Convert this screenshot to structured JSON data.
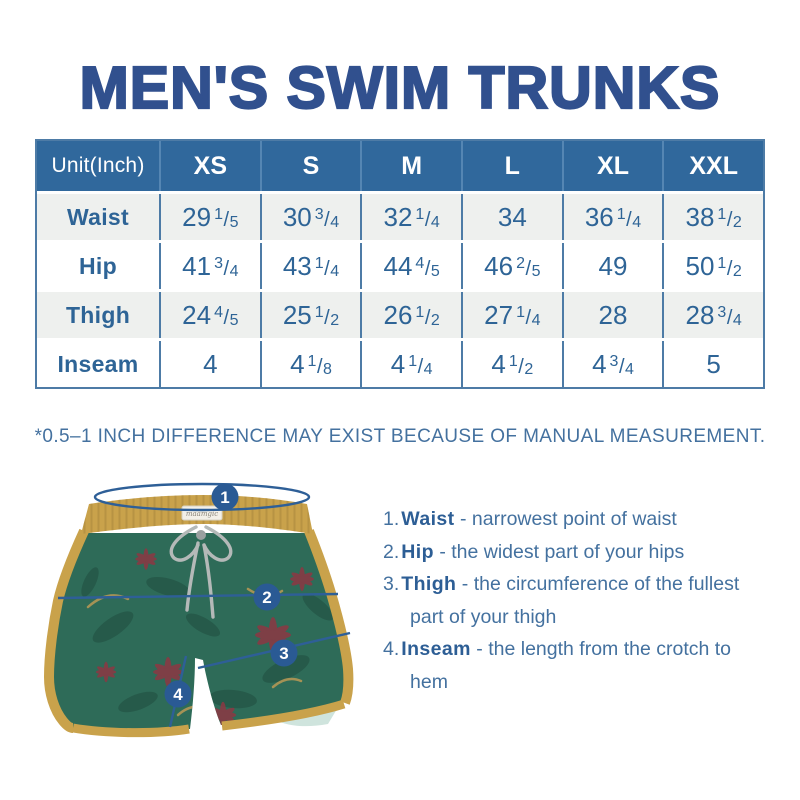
{
  "title": "MEN'S SWIM TRUNKS",
  "size_table": {
    "unit_label": "Unit(Inch)",
    "sizes": [
      "XS",
      "S",
      "M",
      "L",
      "XL",
      "XXL"
    ],
    "rows": [
      {
        "label": "Waist",
        "values": [
          "29 1/5",
          "30 3/4",
          "32 1/4",
          "34",
          "36 1/4",
          "38 1/2"
        ]
      },
      {
        "label": "Hip",
        "values": [
          "41 3/4",
          "43 1/4",
          "44 4/5",
          "46 2/5",
          "49",
          "50 1/2"
        ]
      },
      {
        "label": "Thigh",
        "values": [
          "24 4/5",
          "25 1/2",
          "26 1/2",
          "27 1/4",
          "28",
          "28 3/4"
        ]
      },
      {
        "label": "Inseam",
        "values": [
          "4",
          "4 1/8",
          "4 1/4",
          "4 1/2",
          "4 3/4",
          "5"
        ]
      }
    ]
  },
  "note": "*0.5–1 INCH DIFFERENCE MAY EXIST BECAUSE OF MANUAL MEASUREMENT.",
  "diagram": {
    "brand_label": "maamgic",
    "callouts": [
      "1",
      "2",
      "3",
      "4"
    ]
  },
  "legend": {
    "sep": "-",
    "items": [
      {
        "num": "1.",
        "label": "Waist",
        "desc": "narrowest point of waist"
      },
      {
        "num": "2.",
        "label": "Hip",
        "desc": "the widest part of your hips"
      },
      {
        "num": "3.",
        "label": "Thigh",
        "desc": "the circumference of the fullest part of your thigh"
      },
      {
        "num": "4.",
        "label": "Inseam",
        "desc": "the length from the crotch to hem"
      }
    ]
  },
  "colors": {
    "title_blue": "#31508e",
    "header_bg": "#30689c",
    "header_text": "#ffffff",
    "header_divider": "#5586b3",
    "grid_line": "#4d7ba6",
    "cell_text": "#2e6496",
    "row_alt": "#eef0ee",
    "note_text": "#44719f",
    "legend_label": "#2d5e95",
    "legend_text": "#44719f",
    "badge_bg": "#2a5a94",
    "measure_line": "#2e5f97",
    "trunks_green": "#2e6b58",
    "trunks_gold": "#c9a24b",
    "waistband_shadow": "#a8863b",
    "leaf_dark": "#1e4a3c",
    "flower_maroon": "#8c3843",
    "accent_tan": "#c39c55",
    "lining_light": "#cfe4dd",
    "cord_gray": "#b4b9b8"
  }
}
